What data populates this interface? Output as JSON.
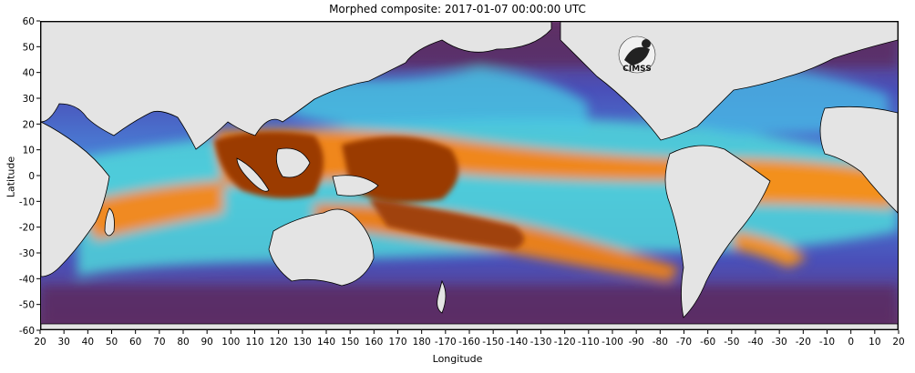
{
  "title": "Morphed composite: 2017-01-07 00:00:00 UTC",
  "axes": {
    "xlabel": "Longitude",
    "ylabel": "Latitude",
    "x_ticks": [
      "20",
      "30",
      "40",
      "50",
      "60",
      "70",
      "80",
      "90",
      "100",
      "110",
      "120",
      "130",
      "140",
      "150",
      "160",
      "170",
      "180",
      "-170",
      "-160",
      "-150",
      "-140",
      "-130",
      "-120",
      "-110",
      "-100",
      "-90",
      "-80",
      "-70",
      "-60",
      "-50",
      "-40",
      "-30",
      "-20",
      "-10",
      "0",
      "10",
      "20"
    ],
    "y_ticks": [
      "60",
      "50",
      "40",
      "30",
      "20",
      "10",
      "0",
      "-10",
      "-20",
      "-30",
      "-40",
      "-50",
      "-60"
    ],
    "lon_range": [
      20,
      380
    ],
    "lat_range": [
      -60,
      60
    ]
  },
  "logo": {
    "text": "CIMSS"
  },
  "colors": {
    "land": "#e4e4e4",
    "dry": "#5b2a5e",
    "moderate": "#3a6fe0",
    "moist": "#5fe3d0",
    "wet": "#f28a1e",
    "very_wet": "#9a3a05"
  }
}
